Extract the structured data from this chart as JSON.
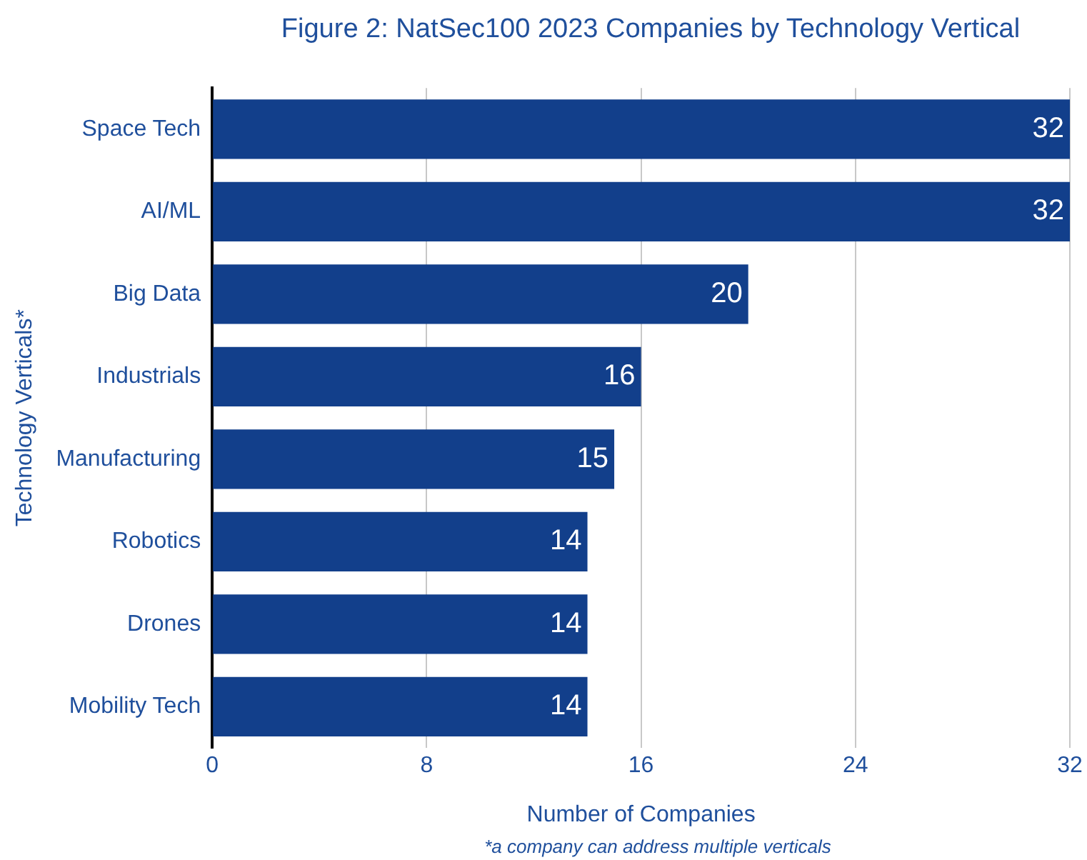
{
  "chart_data": {
    "type": "bar",
    "orientation": "horizontal",
    "title": "Figure 2: NatSec100 2023 Companies by Technology Vertical",
    "xlabel": "Number of Companies",
    "ylabel": "Technology Verticals*",
    "categories": [
      "Space Tech",
      "AI/ML",
      "Big Data",
      "Industrials",
      "Manufacturing",
      "Robotics",
      "Drones",
      "Mobility Tech"
    ],
    "values": [
      32,
      32,
      20,
      16,
      15,
      14,
      14,
      14
    ],
    "color": "#123f8b",
    "xlim": [
      0,
      32
    ],
    "xticks": [
      0,
      8,
      16,
      24,
      32
    ],
    "grid": "x",
    "data_labels": true,
    "annotations": [
      "*a company can address multiple verticals"
    ]
  }
}
